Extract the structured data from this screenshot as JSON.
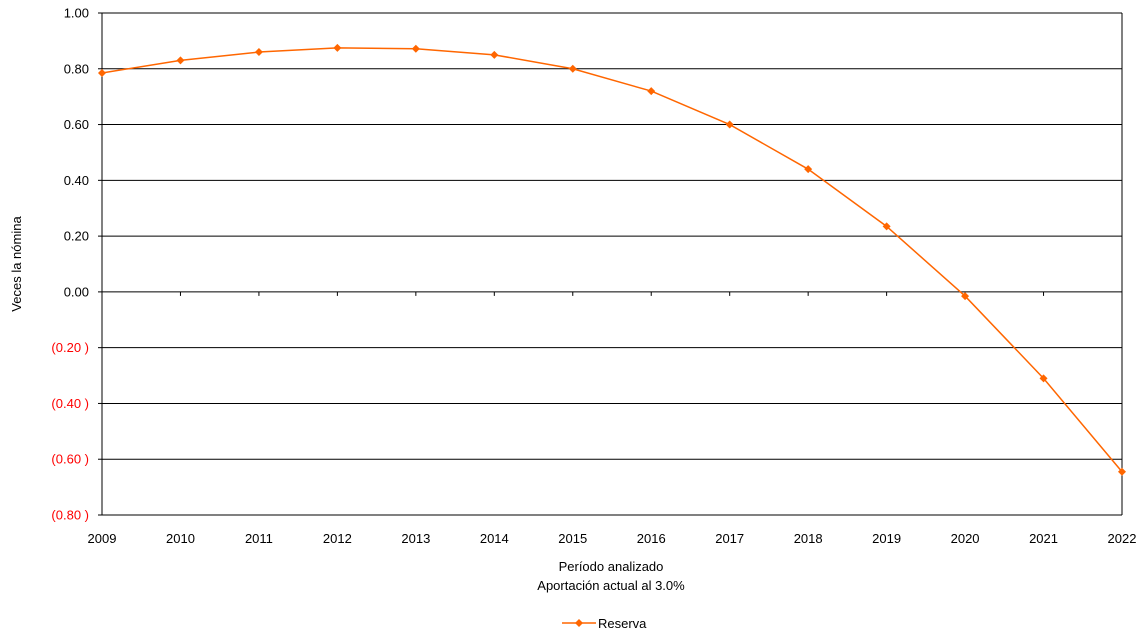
{
  "chart_data": {
    "type": "line",
    "x": [
      2009,
      2010,
      2011,
      2012,
      2013,
      2014,
      2015,
      2016,
      2017,
      2018,
      2019,
      2020,
      2021,
      2022
    ],
    "x_tick_labels": [
      "2009",
      "2010",
      "2011",
      "2012",
      "2013",
      "2014",
      "2015",
      "2016",
      "2017",
      "2018",
      "2019",
      "2020",
      "2021",
      "2022"
    ],
    "series": [
      {
        "name": "Reserva",
        "color": "#ff6600",
        "marker": "diamond",
        "values": [
          0.785,
          0.83,
          0.86,
          0.875,
          0.872,
          0.85,
          0.8,
          0.72,
          0.6,
          0.44,
          0.235,
          -0.015,
          -0.31,
          -0.645
        ]
      }
    ],
    "ylim": [
      -0.8,
      1.0
    ],
    "y_ticks": [
      1.0,
      0.8,
      0.6,
      0.4,
      0.2,
      0.0,
      -0.2,
      -0.4,
      -0.6,
      -0.8
    ],
    "y_tick_labels": [
      "1.00",
      "0.80",
      "0.60",
      "0.40",
      "0.20",
      "0.00",
      "(0.20 )",
      "(0.40 )",
      "(0.60 )",
      "(0.80 )"
    ],
    "negative_label_color": "#ff0000",
    "ylabel": "Veces la nómina",
    "xlabel": "Período analizado",
    "xlabel2": "Aportación actual al 3.0%",
    "legend": {
      "placement": "bottom-center",
      "label": "Reserva"
    },
    "grid": {
      "horizontal": true,
      "vertical": false
    }
  }
}
